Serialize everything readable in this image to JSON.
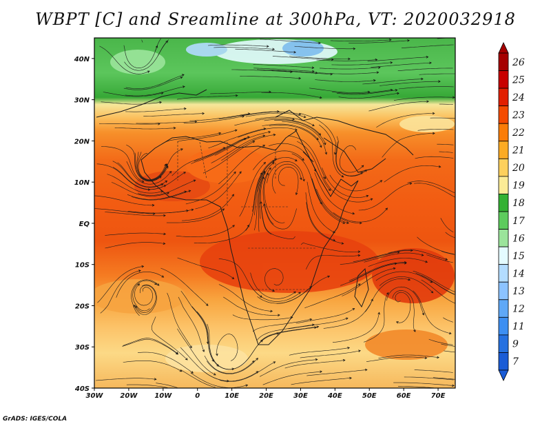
{
  "title": "WBPT [C] and Sreamline at 300hPa, VT: 2020032918",
  "credit": "GrADS: IGES/COLA",
  "map": {
    "lon_range": [
      -30,
      75
    ],
    "lat_range": [
      -40,
      45
    ],
    "lat_labels": [
      "40N",
      "30N",
      "20N",
      "10N",
      "EQ",
      "10S",
      "20S",
      "30S",
      "40S"
    ],
    "lon_labels": [
      "30W",
      "20W",
      "10W",
      "0",
      "10E",
      "20E",
      "30E",
      "40E",
      "50E",
      "60E",
      "70E"
    ]
  },
  "colorbar": {
    "labels": [
      "26",
      "25",
      "24",
      "23",
      "22",
      "21",
      "20",
      "19",
      "18",
      "17",
      "16",
      "15",
      "14",
      "13",
      "12",
      "11",
      "9",
      "7"
    ],
    "colors": [
      "#a50000",
      "#c80000",
      "#e21f00",
      "#f44b00",
      "#fa7d08",
      "#fcab23",
      "#fdd05c",
      "#fbeb96",
      "#33b133",
      "#5dcc5d",
      "#9be49b",
      "#e4fbff",
      "#b3dcff",
      "#8cc3ff",
      "#5fa8f7",
      "#3d8ff2",
      "#2671e0",
      "#1a5cd6"
    ]
  }
}
